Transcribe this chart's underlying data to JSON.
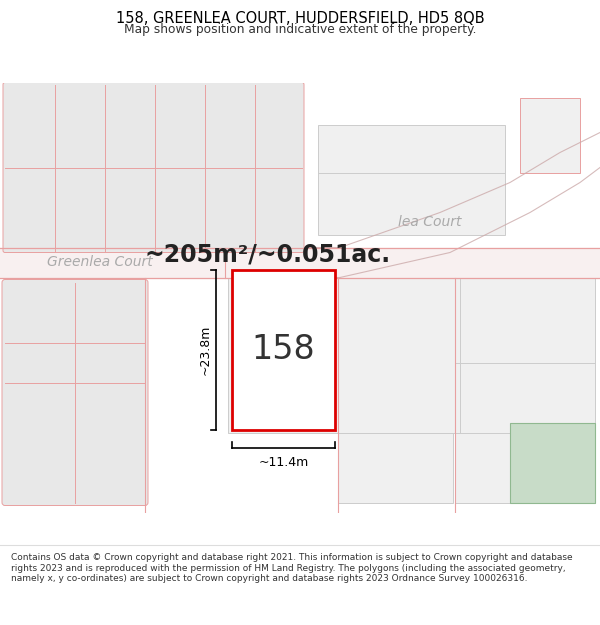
{
  "title_line1": "158, GREENLEA COURT, HUDDERSFIELD, HD5 8QB",
  "title_line2": "Map shows position and indicative extent of the property.",
  "area_text": "~205m²/~0.051ac.",
  "property_number": "158",
  "width_label": "~11.4m",
  "height_label": "~23.8m",
  "street_label_left": "Greenlea Court",
  "street_label_right": "lea Court",
  "footer_text": "Contains OS data © Crown copyright and database right 2021. This information is subject to Crown copyright and database rights 2023 and is reproduced with the permission of HM Land Registry. The polygons (including the associated geometry, namely x, y co-ordinates) are subject to Crown copyright and database rights 2023 Ordnance Survey 100026316.",
  "map_bg": "#f5f0f0",
  "plot_fill": "#e8e8e8",
  "plot_fill2": "#f0f0f0",
  "property_fill": "#ffffff",
  "property_edge": "#dd0000",
  "plot_edge_color": "#e8a0a0",
  "plot_edge_dark": "#c88080",
  "road_bg": "#ffffff",
  "green_area": "#c8dcc8",
  "footer_bg": "#ffffff",
  "title_bg": "#ffffff",
  "street_text_color": "#aaaaaa",
  "area_text_color": "#222222"
}
